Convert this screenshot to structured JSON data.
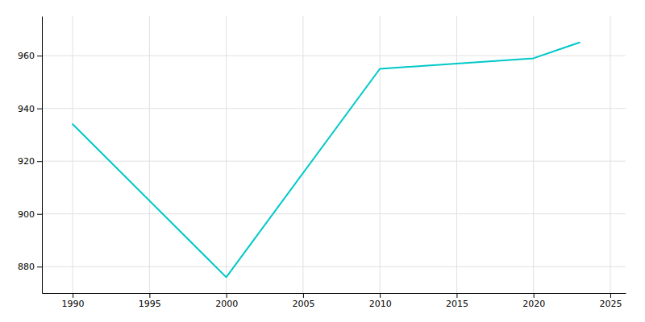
{
  "chart_data": {
    "type": "line",
    "x": [
      1990,
      2000,
      2010,
      2015,
      2020,
      2022,
      2023
    ],
    "values": [
      934,
      876,
      955,
      957,
      959,
      963,
      965
    ],
    "color": "#00C8C8",
    "xlim": [
      1988,
      2026
    ],
    "ylim": [
      870,
      975
    ],
    "xticks": [
      1990,
      1995,
      2000,
      2005,
      2010,
      2015,
      2020,
      2025
    ],
    "yticks": [
      880,
      900,
      920,
      940,
      960
    ],
    "grid": true
  }
}
